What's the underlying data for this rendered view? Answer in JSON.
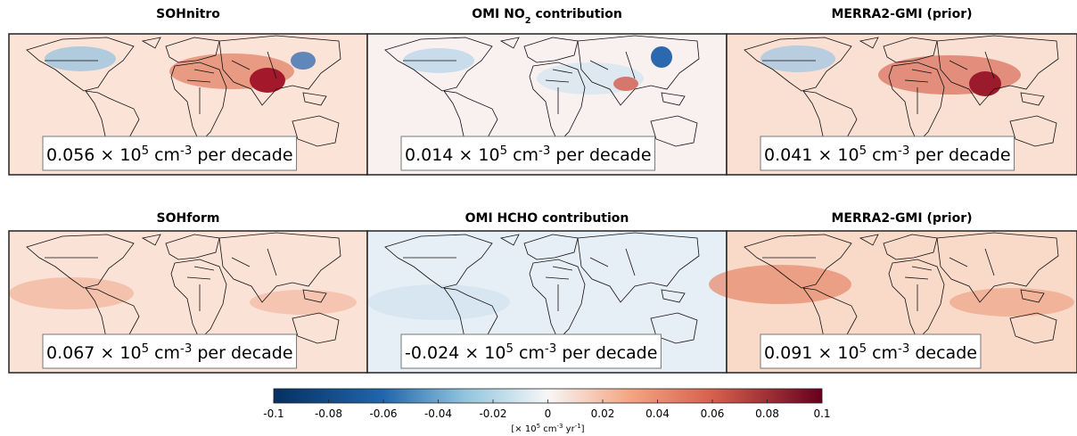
{
  "panels": [
    {
      "title_parts": [
        "SOHnitro"
      ],
      "annotation_parts": [
        "0.056 × 10",
        "5",
        " cm",
        "-3",
        " per decade"
      ]
    },
    {
      "title_parts": [
        "OMI NO",
        "2",
        " contribution"
      ],
      "annotation_parts": [
        "0.014 × 10",
        "5",
        " cm",
        "-3",
        " per decade"
      ]
    },
    {
      "title_parts": [
        "MERRA2-GMI (prior)"
      ],
      "annotation_parts": [
        "0.041 × 10",
        "5",
        " cm",
        "-3",
        " per decade"
      ]
    },
    {
      "title_parts": [
        "SOHform"
      ],
      "annotation_parts": [
        "0.067 × 10",
        "5",
        " cm",
        "-3",
        " per decade"
      ]
    },
    {
      "title_parts": [
        "OMI HCHO contribution"
      ],
      "annotation_parts": [
        "-0.024 × 10",
        "5",
        " cm",
        "-3",
        " per decade"
      ]
    },
    {
      "title_parts": [
        "MERRA2-GMI (prior)"
      ],
      "annotation_parts": [
        "0.091 × 10",
        "5",
        " cm",
        "-3",
        " decade"
      ]
    }
  ],
  "colorbar": {
    "lim": [
      -0.1,
      0.1
    ],
    "ticks": [
      -0.1,
      -0.08,
      -0.06,
      -0.04,
      -0.02,
      0,
      0.02,
      0.04,
      0.06,
      0.08,
      0.1
    ],
    "label_parts": [
      "[× 10",
      "5",
      " cm",
      "-3",
      " yr",
      "-1",
      "]"
    ]
  }
}
